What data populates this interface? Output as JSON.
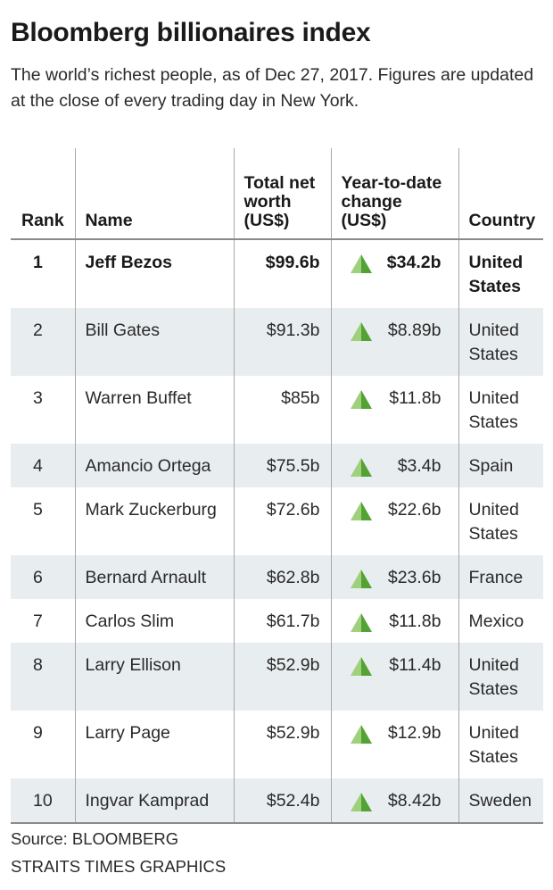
{
  "title": "Bloomberg billionaires index",
  "subtitle": "The world’s richest people, as of Dec 27, 2017. Figures are updated at the close of every trading day in New York.",
  "colors": {
    "row_shade": "#e8edef",
    "up_triangle_light": "#9fd07c",
    "up_triangle_dark": "#52a334",
    "rule": "#8a8a8a"
  },
  "chart_data": {
    "type": "table",
    "columns": [
      "Rank",
      "Name",
      "Total net worth (US$)",
      "Year-to-date change (US$)",
      "Country"
    ],
    "rows": [
      {
        "rank": "1",
        "name": "Jeff Bezos",
        "net_worth": "$99.6b",
        "ytd_change": "$34.2b",
        "ytd_direction": "up",
        "country": "United States"
      },
      {
        "rank": "2",
        "name": "Bill Gates",
        "net_worth": "$91.3b",
        "ytd_change": "$8.89b",
        "ytd_direction": "up",
        "country": "United States"
      },
      {
        "rank": "3",
        "name": "Warren Buffet",
        "net_worth": "$85b",
        "ytd_change": "$11.8b",
        "ytd_direction": "up",
        "country": "United States"
      },
      {
        "rank": "4",
        "name": "Amancio Ortega",
        "net_worth": "$75.5b",
        "ytd_change": "$3.4b",
        "ytd_direction": "up",
        "country": "Spain"
      },
      {
        "rank": "5",
        "name": "Mark Zuckerburg",
        "net_worth": "$72.6b",
        "ytd_change": "$22.6b",
        "ytd_direction": "up",
        "country": "United States"
      },
      {
        "rank": "6",
        "name": "Bernard Arnault",
        "net_worth": "$62.8b",
        "ytd_change": "$23.6b",
        "ytd_direction": "up",
        "country": "France"
      },
      {
        "rank": "7",
        "name": "Carlos Slim",
        "net_worth": "$61.7b",
        "ytd_change": "$11.8b",
        "ytd_direction": "up",
        "country": "Mexico"
      },
      {
        "rank": "8",
        "name": "Larry Ellison",
        "net_worth": "$52.9b",
        "ytd_change": "$11.4b",
        "ytd_direction": "up",
        "country": "United States"
      },
      {
        "rank": "9",
        "name": "Larry Page",
        "net_worth": "$52.9b",
        "ytd_change": "$12.9b",
        "ytd_direction": "up",
        "country": "United States"
      },
      {
        "rank": "10",
        "name": "Ingvar Kamprad",
        "net_worth": "$52.4b",
        "ytd_change": "$8.42b",
        "ytd_direction": "up",
        "country": "Sweden"
      }
    ]
  },
  "source": {
    "line1": "Source: BLOOMBERG",
    "line2": "STRAITS TIMES GRAPHICS"
  }
}
